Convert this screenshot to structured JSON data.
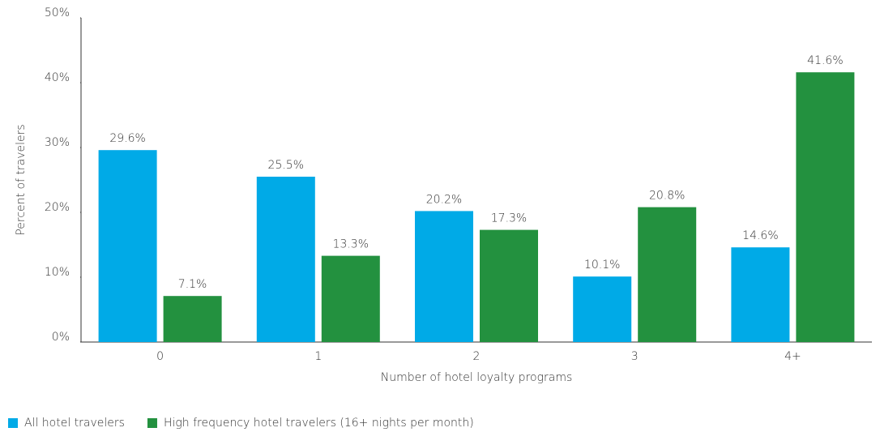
{
  "chart_data": {
    "type": "bar",
    "categories": [
      "0",
      "1",
      "2",
      "3",
      "4+"
    ],
    "xlabel": "Number of hotel loyalty programs",
    "ylabel": "Percent of travelers",
    "series": [
      {
        "name": "All hotel travelers",
        "color": "#00aae7",
        "values": [
          29.6,
          25.5,
          20.2,
          10.1,
          14.6
        ],
        "value_labels": [
          "29.6%",
          "25.5%",
          "20.2%",
          "10.1%",
          "14.6%"
        ]
      },
      {
        "name": "High frequency hotel travelers (16+ nights per month)",
        "color": "#23913f",
        "values": [
          7.1,
          13.3,
          17.3,
          20.8,
          41.6
        ],
        "value_labels": [
          "7.1%",
          "13.3%",
          "17.3%",
          "20.8%",
          "41.6%"
        ]
      }
    ],
    "ylim": [
      0,
      50
    ],
    "yticks": [
      {
        "value": 0,
        "label": "0%"
      },
      {
        "value": 10,
        "label": "10%"
      },
      {
        "value": 20,
        "label": "20%"
      },
      {
        "value": 30,
        "label": "30%"
      },
      {
        "value": 40,
        "label": "40%"
      },
      {
        "value": 50,
        "label": "50%"
      }
    ],
    "grid": false,
    "legend": "bottom-left"
  }
}
